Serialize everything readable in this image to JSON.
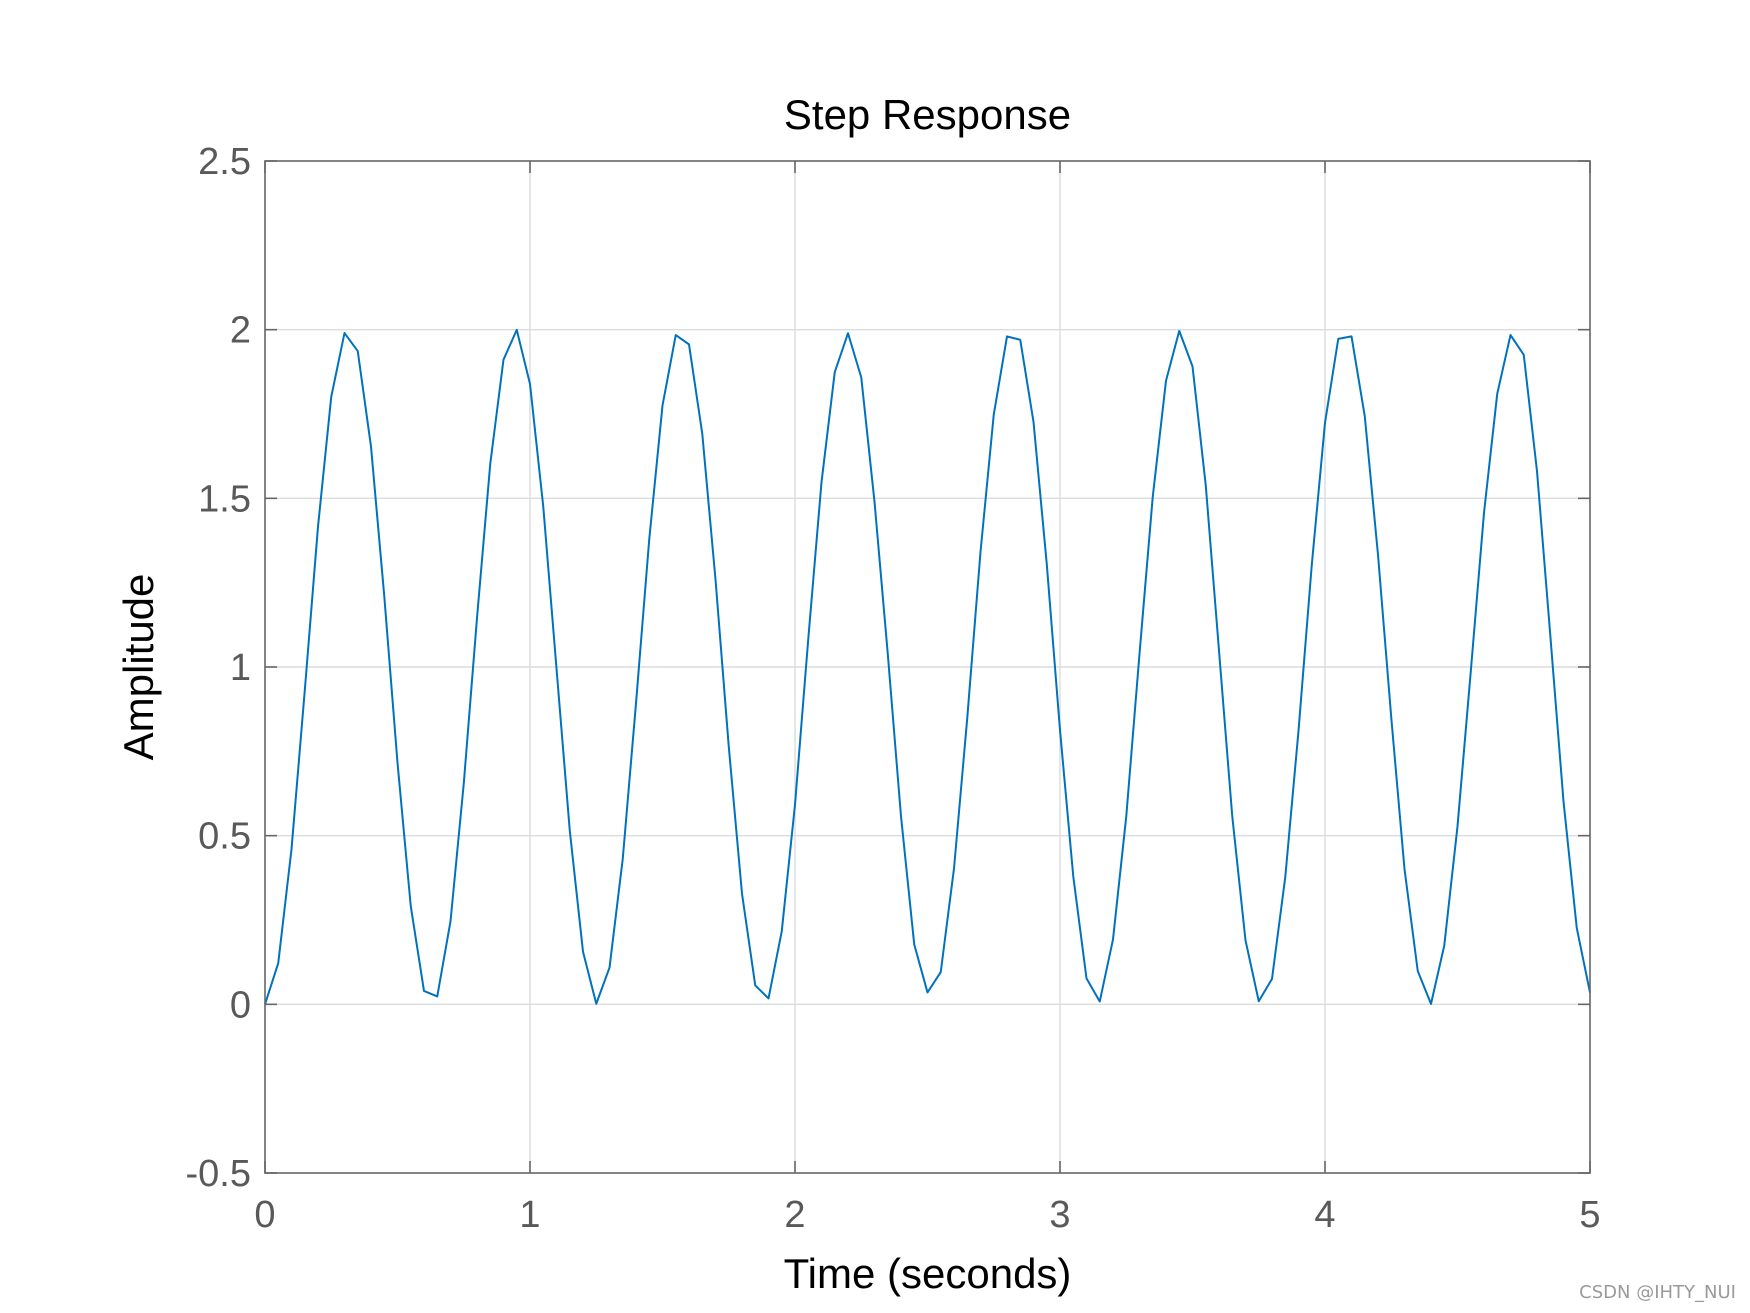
{
  "chart_data": {
    "type": "line",
    "title": "Step Response",
    "xlabel": "Time (seconds)",
    "ylabel": "Amplitude",
    "xlim": [
      0,
      5
    ],
    "ylim": [
      -0.5,
      2.5
    ],
    "xticks": [
      0,
      1,
      2,
      3,
      4,
      5
    ],
    "xtick_labels": [
      "0",
      "1",
      "2",
      "3",
      "4",
      "5"
    ],
    "yticks": [
      -0.5,
      0,
      0.5,
      1,
      1.5,
      2,
      2.5
    ],
    "ytick_labels": [
      "-0.5",
      "0",
      "0.5",
      "1",
      "1.5",
      "2",
      "2.5"
    ],
    "grid": true,
    "series": [
      {
        "description": "y(t) = 1 - cos(10 t), sampled every 0.05 s",
        "color": "#0072BD",
        "x": [
          0,
          0.05,
          0.1,
          0.15,
          0.2,
          0.25,
          0.3,
          0.35,
          0.4,
          0.45,
          0.5,
          0.55,
          0.6,
          0.65,
          0.7,
          0.75,
          0.8,
          0.85,
          0.9,
          0.95,
          1,
          1.05,
          1.1,
          1.15,
          1.2,
          1.25,
          1.3,
          1.35,
          1.4,
          1.45,
          1.5,
          1.55,
          1.6,
          1.65,
          1.7,
          1.75,
          1.8,
          1.85,
          1.9,
          1.95,
          2,
          2.05,
          2.1,
          2.15,
          2.2,
          2.25,
          2.3,
          2.35,
          2.4,
          2.45,
          2.5,
          2.55,
          2.6,
          2.65,
          2.7,
          2.75,
          2.8,
          2.85,
          2.9,
          2.95,
          3,
          3.05,
          3.1,
          3.15,
          3.2,
          3.25,
          3.3,
          3.35,
          3.4,
          3.45,
          3.5,
          3.55,
          3.6,
          3.65,
          3.7,
          3.75,
          3.8,
          3.85,
          3.9,
          3.95,
          4,
          4.05,
          4.1,
          4.15,
          4.2,
          4.25,
          4.3,
          4.35,
          4.4,
          4.45,
          4.5,
          4.55,
          4.6,
          4.65,
          4.7,
          4.75,
          4.8,
          4.85,
          4.9,
          4.95,
          5
        ],
        "y": [
          0,
          0.1224,
          0.4597,
          0.9293,
          1.4161,
          1.8011,
          1.99,
          1.9365,
          1.6536,
          1.2108,
          0.7163,
          0.2913,
          0.0398,
          0.0234,
          0.2461,
          0.6537,
          1.1455,
          1.602,
          1.9111,
          1.9993,
          1.8391,
          1.476,
          0.9956,
          0.5159,
          0.1562,
          0.0017,
          0.1086,
          0.4313,
          0.8922,
          1.3788,
          1.7752,
          1.984,
          1.9564,
          1.692,
          1.2595,
          0.7647,
          0.3283,
          0.0561,
          0.0176,
          0.2166,
          0.5919,
          1.0825,
          1.5477,
          1.8738,
          1.9894,
          1.8586,
          1.4902,
          1.0398,
          0.5573,
          0.1775,
          0.0353,
          0.0958,
          0.4028,
          0.8485,
          1.3412,
          1.7479,
          1.98,
          1.97,
          1.7268,
          1.3057,
          0.8129,
          0.38,
          0.0768,
          0.0085,
          0.1925,
          0.5568,
          1.0386,
          1.5046,
          1.8486,
          1.9963,
          1.8912,
          1.5388,
          1.0487,
          0.5578,
          0.1898,
          0.0091,
          0.0754,
          0.3766,
          0.8107,
          1.3017,
          1.7241,
          1.9727,
          1.9802,
          1.7438,
          1.3326,
          0.8506,
          0.401,
          0.0987,
          0.0014,
          0.1741,
          0.5276,
          0.9858,
          1.4572,
          1.8101,
          1.984,
          1.9256,
          1.5807,
          1.0958,
          0.6017,
          0.2266,
          0.035
        ]
      }
    ]
  },
  "watermark": "CSDN @IHTY_NUI",
  "colors": {
    "axes": "#666666",
    "grid": "#dcdcdc",
    "line": "#0072BD"
  }
}
